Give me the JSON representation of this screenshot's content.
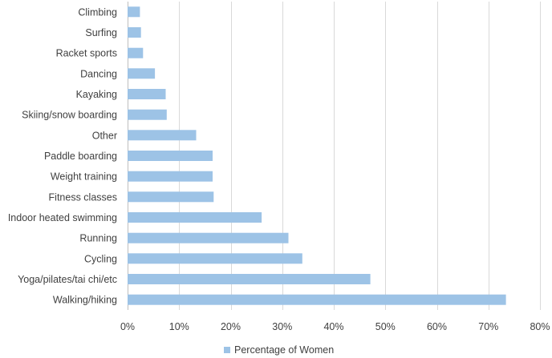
{
  "chart_data": {
    "type": "bar",
    "orientation": "horizontal",
    "categories": [
      "Climbing",
      "Surfing",
      "Racket sports",
      "Dancing",
      "Kayaking",
      "Skiing/snow boarding",
      "Other",
      "Paddle boarding",
      "Weight training",
      "Fitness classes",
      "Indoor heated swimming",
      "Running",
      "Cycling",
      "Yoga/pilates/tai chi/etc",
      "Walking/hiking"
    ],
    "series": [
      {
        "name": "Percentage of Women",
        "values": [
          2.4,
          2.6,
          3.0,
          5.3,
          7.4,
          7.6,
          13.3,
          16.5,
          16.5,
          16.7,
          26.0,
          31.2,
          33.9,
          47.1,
          73.4
        ]
      }
    ],
    "x_ticks": [
      "0%",
      "10%",
      "20%",
      "30%",
      "40%",
      "50%",
      "60%",
      "70%",
      "80%"
    ],
    "xlim": [
      0,
      80
    ],
    "title": "",
    "xlabel": "",
    "ylabel": "",
    "grid": "vertical",
    "legend_position": "bottom",
    "colors": {
      "bar": "#9dc3e6",
      "grid": "#d9d9d9",
      "text": "#404040"
    }
  }
}
